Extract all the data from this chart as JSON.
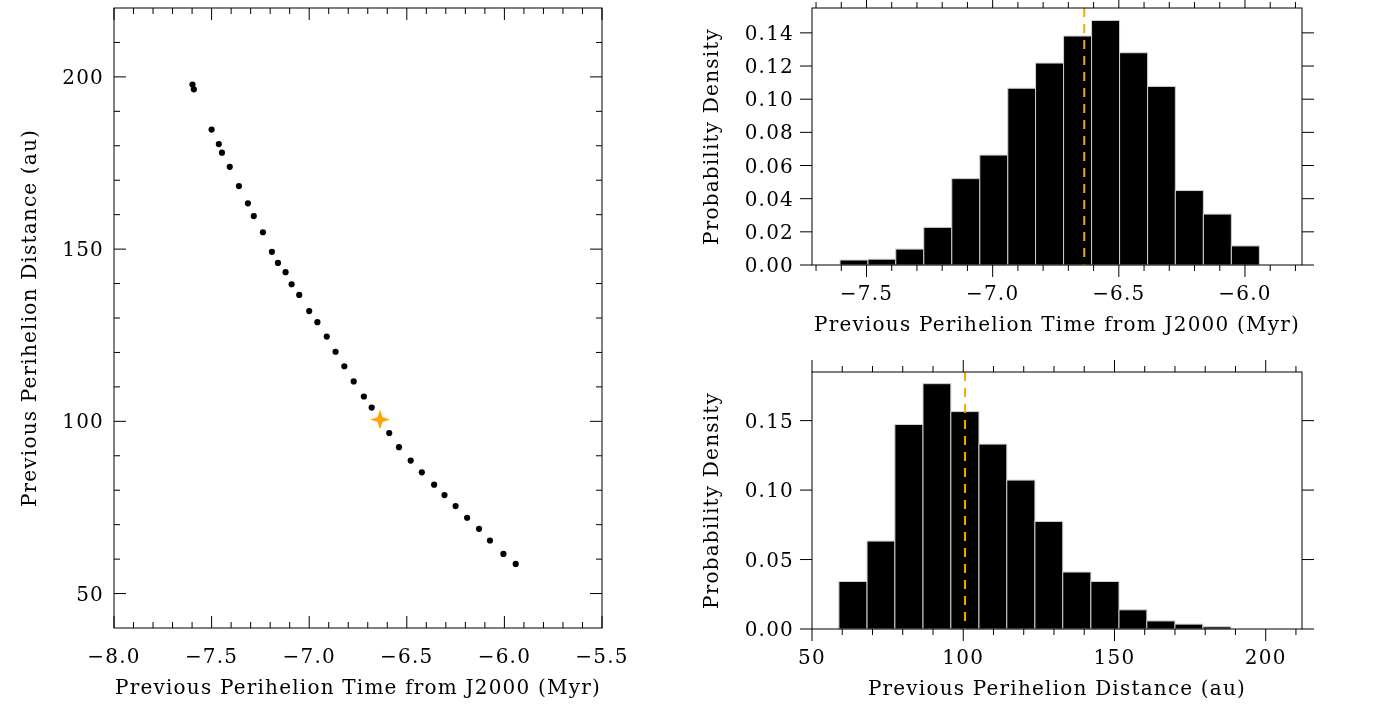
{
  "chart_data": [
    {
      "type": "scatter",
      "xlabel": "Previous Perihelion Time from J2000 (Myr)",
      "ylabel": "Previous Perihelion Distance (au)",
      "xlim": [
        -8.0,
        -5.5
      ],
      "ylim": [
        40,
        220
      ],
      "xticks": [
        {
          "value": -8.0,
          "label": "−8.0"
        },
        {
          "value": -7.9,
          "label": null
        },
        {
          "value": -7.8,
          "label": null
        },
        {
          "value": -7.7,
          "label": null
        },
        {
          "value": -7.6,
          "label": null
        },
        {
          "value": -7.5,
          "label": "−7.5"
        },
        {
          "value": -7.4,
          "label": null
        },
        {
          "value": -7.3,
          "label": null
        },
        {
          "value": -7.2,
          "label": null
        },
        {
          "value": -7.1,
          "label": null
        },
        {
          "value": -7.0,
          "label": "−7.0"
        },
        {
          "value": -6.9,
          "label": null
        },
        {
          "value": -6.8,
          "label": null
        },
        {
          "value": -6.7,
          "label": null
        },
        {
          "value": -6.6,
          "label": null
        },
        {
          "value": -6.5,
          "label": "−6.5"
        },
        {
          "value": -6.4,
          "label": null
        },
        {
          "value": -6.3,
          "label": null
        },
        {
          "value": -6.2,
          "label": null
        },
        {
          "value": -6.1,
          "label": null
        },
        {
          "value": -6.0,
          "label": "−6.0"
        },
        {
          "value": -5.9,
          "label": null
        },
        {
          "value": -5.8,
          "label": null
        },
        {
          "value": -5.7,
          "label": null
        },
        {
          "value": -5.6,
          "label": null
        },
        {
          "value": -5.5,
          "label": "−5.5"
        }
      ],
      "yticks": [
        50,
        {
          "value": 60,
          "label": null
        },
        {
          "value": 70,
          "label": null
        },
        {
          "value": 80,
          "label": null
        },
        {
          "value": 90,
          "label": null
        },
        100,
        {
          "value": 110,
          "label": null
        },
        {
          "value": 120,
          "label": null
        },
        {
          "value": 130,
          "label": null
        },
        {
          "value": 140,
          "label": null
        },
        150,
        {
          "value": 160,
          "label": null
        },
        {
          "value": 170,
          "label": null
        },
        {
          "value": 180,
          "label": null
        },
        {
          "value": 190,
          "label": null
        },
        200,
        {
          "value": 210,
          "label": null
        }
      ],
      "series": [
        {
          "type": "scatter",
          "color": "#000000",
          "marker": "circle",
          "x": [
            -7.598,
            -7.591,
            -7.5,
            -7.463,
            -7.447,
            -7.407,
            -7.36,
            -7.314,
            -7.284,
            -7.237,
            -7.191,
            -7.16,
            -7.121,
            -7.09,
            -7.051,
            -7.0,
            -6.958,
            -6.91,
            -6.865,
            -6.82,
            -6.772,
            -6.72,
            -6.68,
            -6.59,
            -6.54,
            -6.48,
            -6.423,
            -6.36,
            -6.307,
            -6.25,
            -6.191,
            -6.13,
            -6.074,
            -6.005,
            -5.942
          ],
          "values": [
            197.8,
            196.4,
            184.7,
            180.5,
            178.0,
            173.9,
            168.3,
            163.3,
            159.6,
            154.9,
            149.2,
            146.0,
            143.3,
            139.8,
            136.7,
            132.0,
            128.8,
            124.6,
            120.2,
            116.0,
            111.6,
            107.2,
            104.0,
            96.6,
            92.5,
            88.6,
            85.2,
            81.6,
            78.6,
            75.4,
            72.0,
            68.8,
            65.4,
            61.5,
            58.6
          ]
        },
        {
          "type": "scatter",
          "color": "#ffa500",
          "marker": "star",
          "x": [
            -6.637
          ],
          "values": [
            100.5
          ]
        }
      ]
    },
    {
      "type": "histogram",
      "xlabel": "Previous Perihelion Time from J2000 (Myr)",
      "ylabel": "Probability Density",
      "color": "#000000",
      "xlim": [
        -7.716,
        -5.774
      ],
      "ylim": [
        0,
        0.155
      ],
      "xticks": [
        {
          "value": -7.7,
          "label": null
        },
        {
          "value": -7.6,
          "label": null
        },
        {
          "value": -7.5,
          "label": "−7.5"
        },
        {
          "value": -7.4,
          "label": null
        },
        {
          "value": -7.3,
          "label": null
        },
        {
          "value": -7.2,
          "label": null
        },
        {
          "value": -7.1,
          "label": null
        },
        {
          "value": -7.0,
          "label": "−7.0"
        },
        {
          "value": -6.9,
          "label": null
        },
        {
          "value": -6.8,
          "label": null
        },
        {
          "value": -6.7,
          "label": null
        },
        {
          "value": -6.6,
          "label": null
        },
        {
          "value": -6.5,
          "label": "−6.5"
        },
        {
          "value": -6.4,
          "label": null
        },
        {
          "value": -6.3,
          "label": null
        },
        {
          "value": -6.2,
          "label": null
        },
        {
          "value": -6.1,
          "label": null
        },
        {
          "value": -6.0,
          "label": "−6.0"
        },
        {
          "value": -5.9,
          "label": null
        },
        {
          "value": -5.8,
          "label": null
        }
      ],
      "yticks": [
        {
          "value": 0,
          "label": "0.00"
        },
        {
          "value": 0.02,
          "label": "0.02"
        },
        {
          "value": 0.04,
          "label": "0.04"
        },
        {
          "value": 0.06,
          "label": "0.06"
        },
        {
          "value": 0.08,
          "label": "0.08"
        },
        {
          "value": 0.1,
          "label": "0.10"
        },
        {
          "value": 0.12,
          "label": "0.12"
        },
        {
          "value": 0.14,
          "label": "0.14"
        }
      ],
      "bins": [
        -7.605,
        -7.494,
        -7.384,
        -7.273,
        -7.162,
        -7.051,
        -6.94,
        -6.83,
        -6.719,
        -6.608,
        -6.497,
        -6.386,
        -6.276,
        -6.165,
        -6.054,
        -5.943
      ],
      "values": [
        0.003,
        0.0035,
        0.0096,
        0.0227,
        0.0521,
        0.0663,
        0.1066,
        0.1218,
        0.1381,
        0.1475,
        0.128,
        0.1077,
        0.0449,
        0.0307,
        0.0115
      ],
      "ref_lines": [
        {
          "axis": "x",
          "value": -6.637,
          "color": "#ffa500",
          "line_style": "dashed"
        }
      ]
    },
    {
      "type": "histogram",
      "xlabel": "Previous Perihelion Distance (au)",
      "ylabel": "Probability Density",
      "color": "#000000",
      "xlim": [
        50,
        212
      ],
      "ylim": [
        0,
        0.185
      ],
      "xticks": [
        50,
        {
          "value": 60,
          "label": null
        },
        {
          "value": 70,
          "label": null
        },
        {
          "value": 80,
          "label": null
        },
        {
          "value": 90,
          "label": null
        },
        100,
        {
          "value": 110,
          "label": null
        },
        {
          "value": 120,
          "label": null
        },
        {
          "value": 130,
          "label": null
        },
        {
          "value": 140,
          "label": null
        },
        150,
        {
          "value": 160,
          "label": null
        },
        {
          "value": 170,
          "label": null
        },
        {
          "value": 180,
          "label": null
        },
        {
          "value": 190,
          "label": null
        },
        200,
        {
          "value": 210,
          "label": null
        }
      ],
      "yticks": [
        {
          "value": 0,
          "label": "0.00"
        },
        {
          "value": 0.05,
          "label": "0.05"
        },
        {
          "value": 0.1,
          "label": "0.10"
        },
        {
          "value": 0.15,
          "label": "0.15"
        }
      ],
      "bins": [
        58.9,
        68.2,
        77.4,
        86.7,
        95.9,
        105.2,
        114.4,
        123.7,
        132.9,
        142.2,
        151.5,
        160.7,
        170.0,
        179.2,
        188.5
      ],
      "values": [
        0.0342,
        0.0633,
        0.1472,
        0.1766,
        0.1565,
        0.1331,
        0.1072,
        0.0774,
        0.041,
        0.0342,
        0.0138,
        0.0058,
        0.0035,
        0.0016
      ],
      "ref_lines": [
        {
          "axis": "x",
          "value": 100.6,
          "color": "#ffa500",
          "line_style": "dashed"
        }
      ]
    }
  ]
}
